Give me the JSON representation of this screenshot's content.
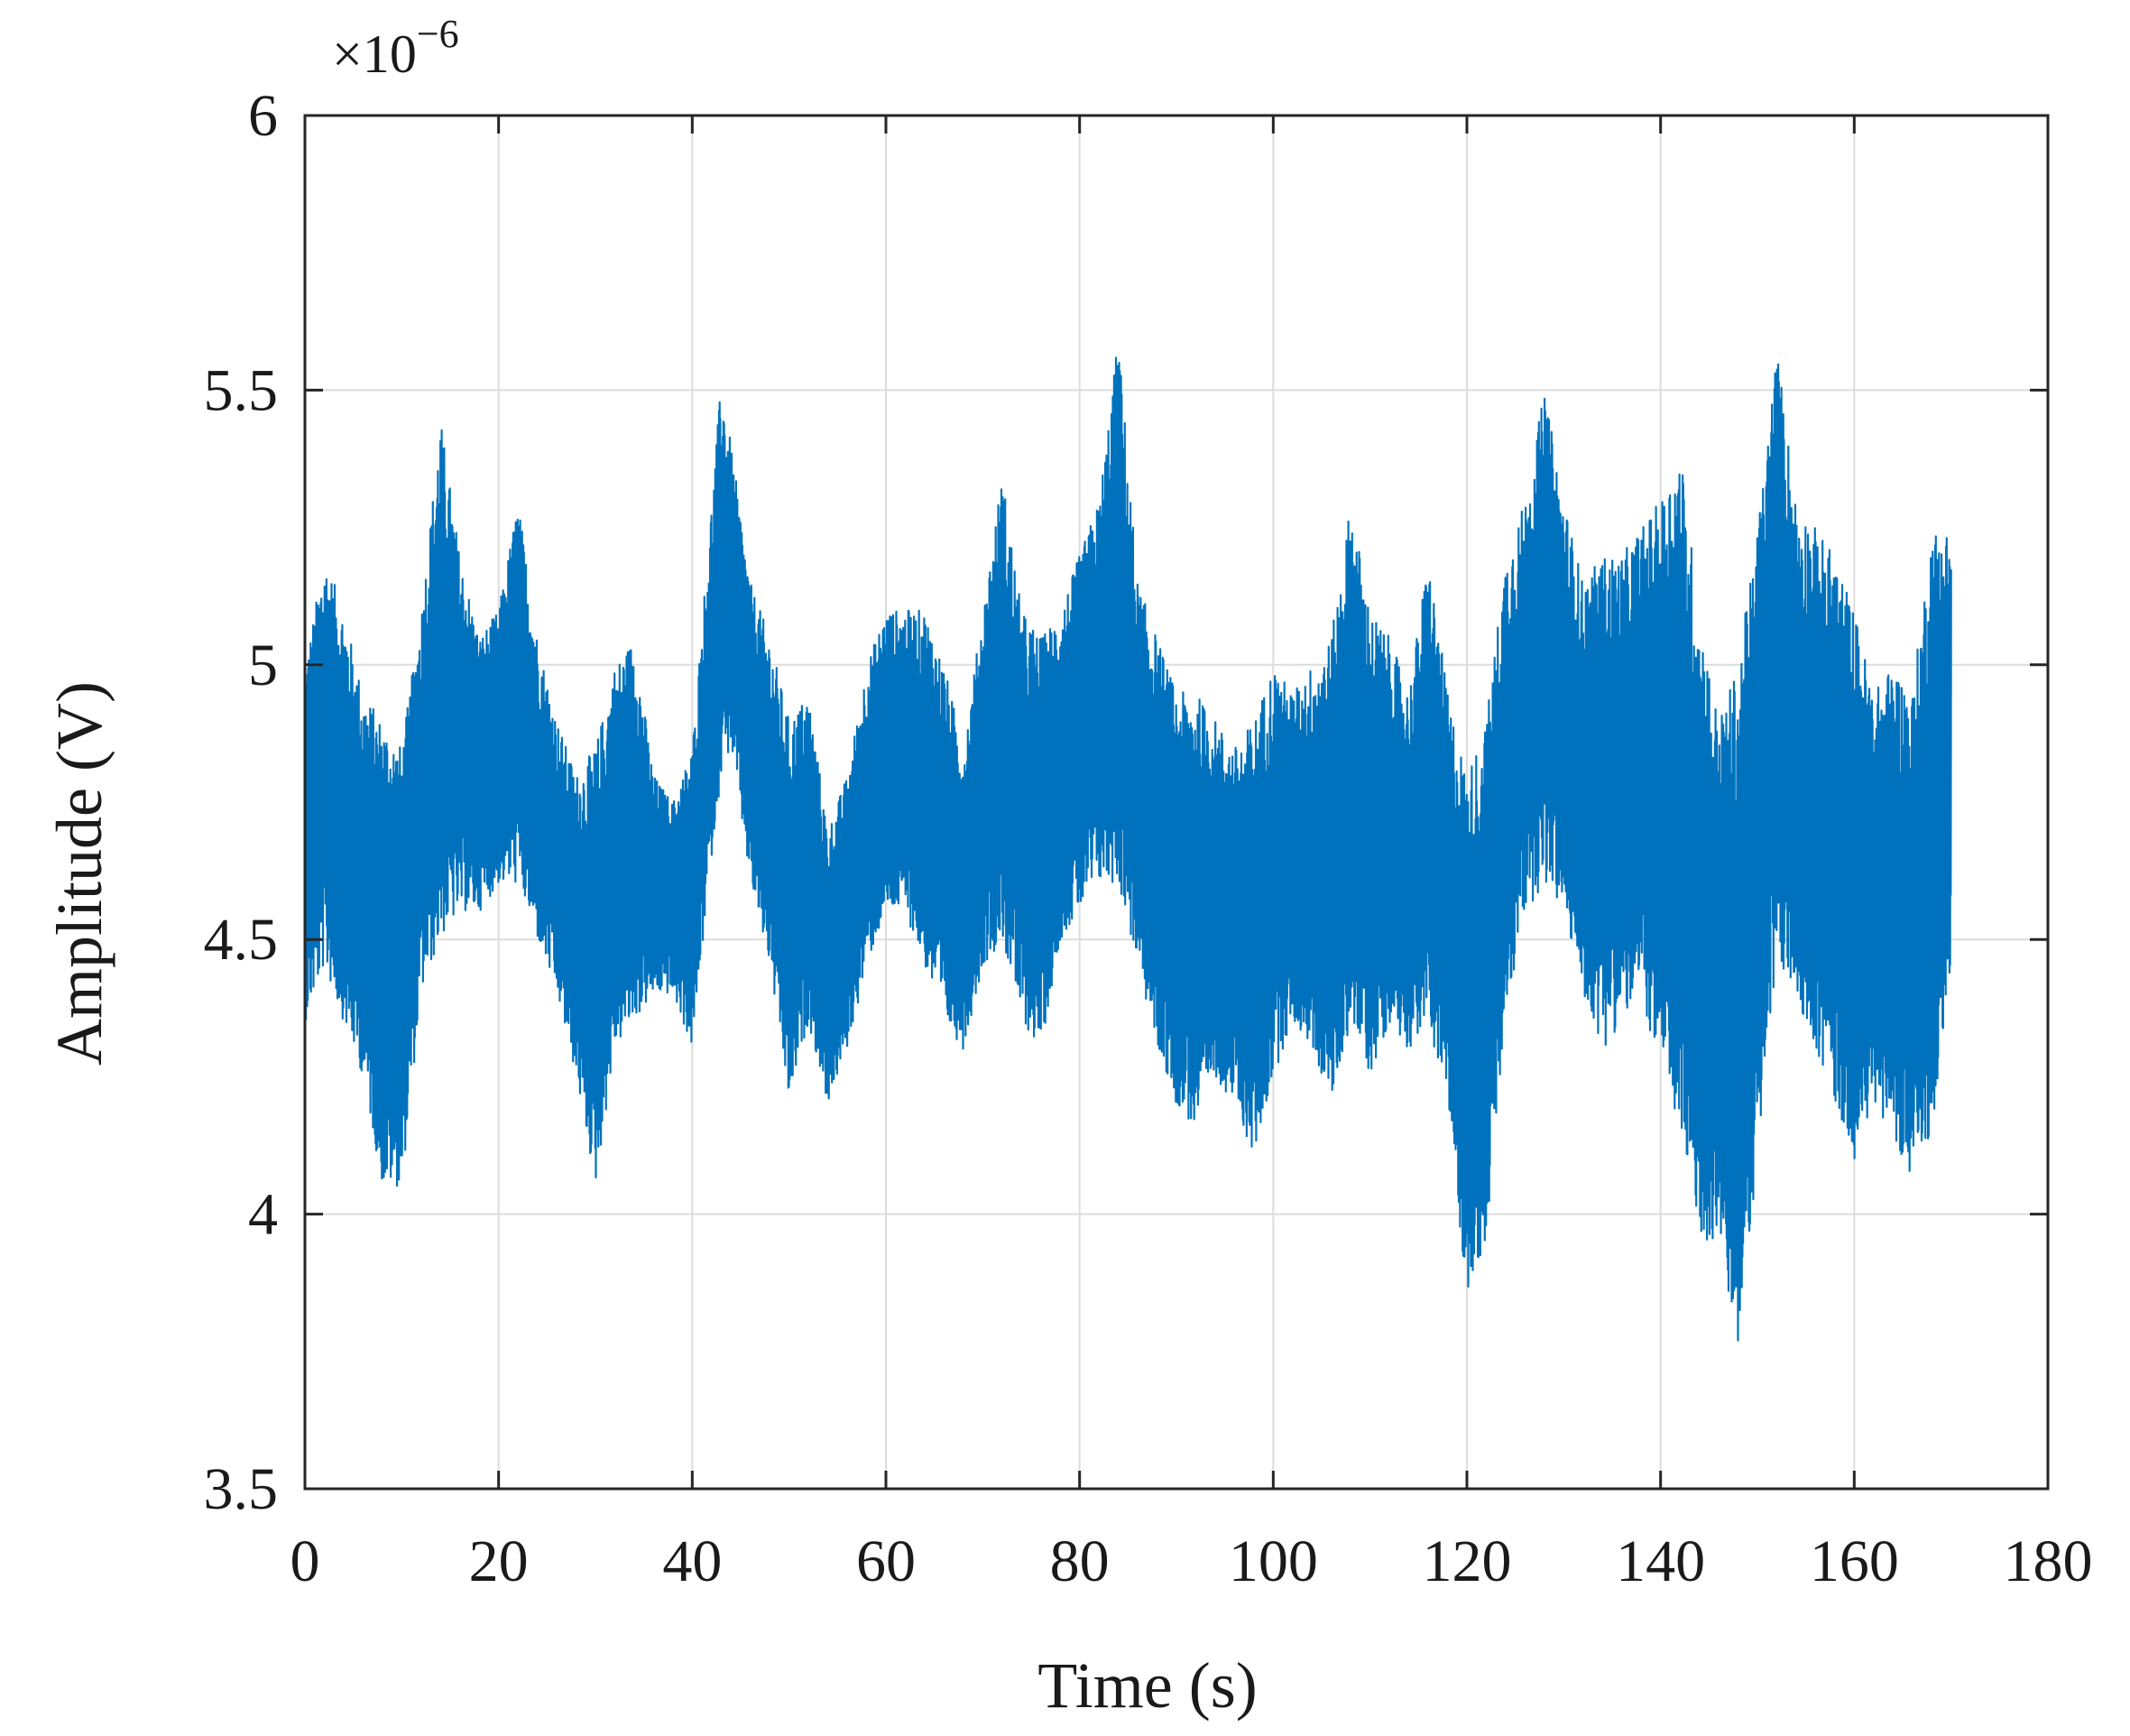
{
  "chart_data": {
    "type": "line",
    "title": "",
    "xlabel": "Time (s)",
    "ylabel": "Amplitude (V)",
    "y_multiplier_label": "×10⁻⁶",
    "y_multiplier_base": "×10",
    "y_multiplier_exp": "−6",
    "xlim": [
      0,
      180
    ],
    "ylim": [
      3.5,
      6
    ],
    "x_ticks": [
      "0",
      "20",
      "40",
      "60",
      "80",
      "100",
      "120",
      "140",
      "160",
      "180"
    ],
    "y_ticks": [
      "3.5",
      "4",
      "4.5",
      "5",
      "5.5",
      "6"
    ],
    "grid": true,
    "series_color": "#0072BD",
    "series": [
      {
        "x_start": 0,
        "x_end": 170,
        "envelope": {
          "x": [
            0,
            2,
            4,
            6,
            8,
            10,
            12,
            14,
            16,
            18,
            20,
            22,
            24,
            26,
            28,
            30,
            32,
            34,
            36,
            38,
            40,
            42,
            43,
            44,
            46,
            48,
            50,
            52,
            54,
            56,
            58,
            60,
            62,
            64,
            66,
            68,
            70,
            72,
            74,
            76,
            78,
            80,
            82,
            84,
            86,
            88,
            90,
            92,
            94,
            96,
            98,
            100,
            102,
            104,
            106,
            108,
            110,
            112,
            114,
            116,
            118,
            120,
            122,
            124,
            126,
            128,
            130,
            132,
            134,
            136,
            138,
            140,
            142,
            144,
            146,
            148,
            150,
            152,
            154,
            156,
            158,
            160,
            162,
            164,
            166,
            168,
            170
          ],
          "upper": [
            5.0,
            5.2,
            5.1,
            4.95,
            4.9,
            4.85,
            5.1,
            5.45,
            5.2,
            5.05,
            5.1,
            5.3,
            5.05,
            4.9,
            4.8,
            4.85,
            5.0,
            5.05,
            4.8,
            4.75,
            4.85,
            5.3,
            5.52,
            5.4,
            5.15,
            5.05,
            4.9,
            4.95,
            4.7,
            4.8,
            5.0,
            5.1,
            5.1,
            5.1,
            5.0,
            4.85,
            5.1,
            5.35,
            5.1,
            5.05,
            5.1,
            5.2,
            5.3,
            5.6,
            5.15,
            5.05,
            4.95,
            4.95,
            4.9,
            4.85,
            4.9,
            5.0,
            4.95,
            5.0,
            5.05,
            5.3,
            5.1,
            5.05,
            4.95,
            5.2,
            4.95,
            4.8,
            4.9,
            5.2,
            5.3,
            5.5,
            5.3,
            5.15,
            5.2,
            5.2,
            5.25,
            5.3,
            5.4,
            5.1,
            4.9,
            5.0,
            5.25,
            5.58,
            5.3,
            5.25,
            5.2,
            5.1,
            4.95,
            5.0,
            4.95,
            5.25,
            5.25
          ],
          "lower": [
            4.35,
            4.45,
            4.35,
            4.25,
            4.05,
            4.05,
            4.4,
            4.5,
            4.55,
            4.55,
            4.6,
            4.6,
            4.5,
            4.4,
            4.25,
            4.05,
            4.3,
            4.35,
            4.4,
            4.4,
            4.3,
            4.65,
            4.8,
            4.85,
            4.6,
            4.45,
            4.2,
            4.35,
            4.2,
            4.3,
            4.45,
            4.55,
            4.55,
            4.45,
            4.35,
            4.3,
            4.45,
            4.5,
            4.35,
            4.3,
            4.5,
            4.55,
            4.6,
            4.6,
            4.45,
            4.3,
            4.2,
            4.15,
            4.25,
            4.2,
            4.1,
            4.25,
            4.35,
            4.3,
            4.2,
            4.35,
            4.25,
            4.35,
            4.3,
            4.35,
            4.2,
            3.85,
            3.95,
            4.35,
            4.55,
            4.6,
            4.55,
            4.4,
            4.3,
            4.35,
            4.4,
            4.25,
            4.15,
            3.95,
            3.95,
            3.75,
            4.1,
            4.45,
            4.4,
            4.3,
            4.2,
            4.1,
            4.2,
            4.15,
            4.05,
            4.15,
            4.45
          ]
        }
      }
    ]
  }
}
